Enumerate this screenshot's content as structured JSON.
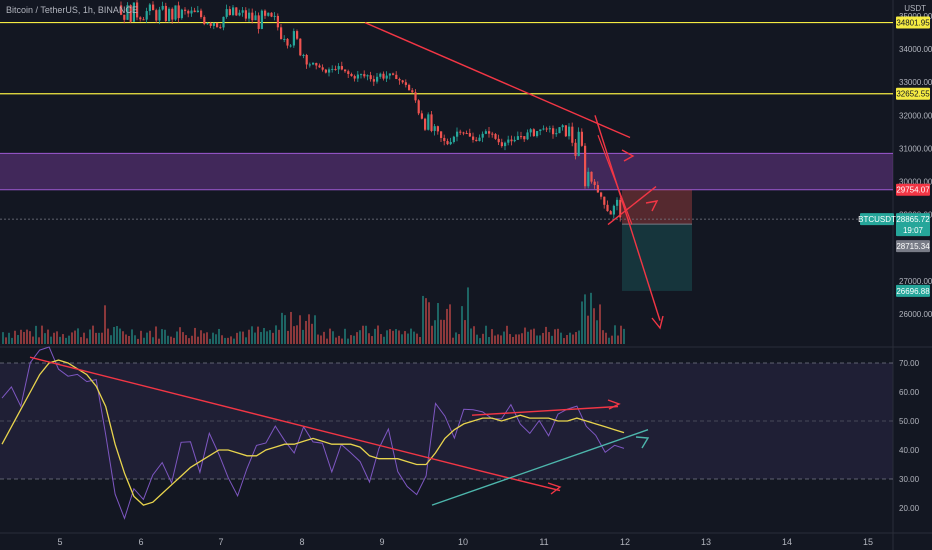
{
  "header": {
    "symbol": "Bitcoin / TetherUS, 1h, BINANCE",
    "currency": "USDT"
  },
  "chart_data": {
    "type": "candlestick",
    "symbol": "Bitcoin / TetherUS",
    "interval": "1h",
    "exchange": "BINANCE",
    "currency": "USDT",
    "price_axis": {
      "ticks": [
        "35000.00",
        "34000.00",
        "33000.00",
        "32000.00",
        "31000.00",
        "30000.00",
        "29000.00",
        "27000.00",
        "26000.00"
      ],
      "range": [
        25100,
        35500
      ]
    },
    "time_axis": {
      "ticks": [
        "5",
        "6",
        "7",
        "8",
        "9",
        "10",
        "11",
        "12",
        "13",
        "14",
        "15"
      ]
    },
    "horizontal_levels": [
      {
        "label": "34801.95",
        "color": "#f5eb42"
      },
      {
        "label": "32652.55",
        "color": "#f5eb42"
      }
    ],
    "zone": {
      "from": 29754,
      "to": 30850,
      "color": "#7a3ea0"
    },
    "price_labels": [
      {
        "text": "29754.07",
        "kind": "stop"
      },
      {
        "text": "BTCUSDT",
        "kind": "symbol"
      },
      {
        "text": "28865.72",
        "kind": "last"
      },
      {
        "text": "19:07",
        "kind": "countdown"
      },
      {
        "text": "28715.34",
        "kind": "entry"
      },
      {
        "text": "26696.88",
        "kind": "target"
      }
    ],
    "position": {
      "type": "short",
      "entry": 28715.34,
      "stop": 29754.07,
      "target": 26696.88
    },
    "price_path": [
      [
        34880,
        35320
      ],
      [
        34900,
        35330
      ],
      [
        34930,
        35300
      ],
      [
        34830,
        35240
      ],
      [
        34820,
        35270
      ],
      [
        34870,
        35220
      ],
      [
        34770,
        35190
      ],
      [
        34600,
        35180
      ],
      [
        34820,
        35240
      ],
      [
        34850,
        35200
      ],
      [
        34670,
        35100
      ],
      [
        34380,
        35080
      ],
      [
        34280,
        35010
      ],
      [
        33920,
        34360
      ],
      [
        33470,
        33590
      ],
      [
        33570,
        33170
      ],
      [
        33430,
        33430
      ],
      [
        33210,
        33140
      ],
      [
        33010,
        33340
      ],
      [
        33080,
        33340
      ],
      [
        33250,
        33160
      ],
      [
        32990,
        32850
      ],
      [
        31890,
        32540
      ],
      [
        31240,
        31660
      ],
      [
        31130,
        31120
      ],
      [
        31560,
        31680
      ],
      [
        31240,
        31200
      ],
      [
        31580,
        31480
      ],
      [
        31080,
        31200
      ],
      [
        31650,
        31100
      ],
      [
        31220,
        31520
      ],
      [
        31730,
        31480
      ],
      [
        31380,
        31590
      ],
      [
        31410,
        31690
      ],
      [
        29630,
        31500
      ],
      [
        30010,
        29640
      ],
      [
        28950,
        29210
      ],
      [
        28890,
        29750
      ]
    ],
    "volume_note": "volume histogram (green up / red down), unlabeled",
    "rsi_panel": {
      "ticks": [
        "70.00",
        "60.00",
        "50.00",
        "40.00",
        "30.00",
        "20.00"
      ],
      "range": [
        15,
        78
      ],
      "band": [
        30,
        70
      ],
      "midline": 50,
      "series": [
        {
          "values": [
            55,
            62,
            58,
            68,
            72,
            74,
            70,
            67,
            66,
            65,
            62,
            44,
            24,
            18,
            25,
            22,
            30,
            38,
            27,
            41,
            45,
            33,
            44,
            40,
            28,
            26,
            31,
            40,
            43,
            48,
            44,
            37,
            48,
            45,
            40,
            34,
            42,
            42,
            38,
            27,
            40,
            46,
            32,
            30,
            26,
            33,
            54,
            53,
            47,
            55,
            56,
            53,
            48,
            52,
            58,
            51,
            48,
            52,
            46,
            55,
            56,
            53,
            48,
            45,
            41,
            39,
            40
          ]
        },
        {
          "values": [
            42,
            48,
            54,
            60,
            66,
            70,
            71,
            70,
            68,
            66,
            62,
            55,
            42,
            32,
            24,
            21,
            22,
            25,
            28,
            31,
            34,
            36,
            38,
            40,
            40,
            39,
            38,
            38,
            40,
            41,
            42,
            42,
            43,
            44,
            43,
            42,
            42,
            42,
            41,
            38,
            37,
            37,
            37,
            36,
            35,
            35,
            39,
            44,
            47,
            49,
            50,
            51,
            51,
            50,
            51,
            52,
            51,
            51,
            51,
            50,
            50,
            51,
            50,
            49,
            48,
            47,
            46
          ]
        }
      ]
    },
    "trend_lines": "downtrend lines on price and RSI, bullish support line on RSI, projection arrows (drawn)"
  }
}
